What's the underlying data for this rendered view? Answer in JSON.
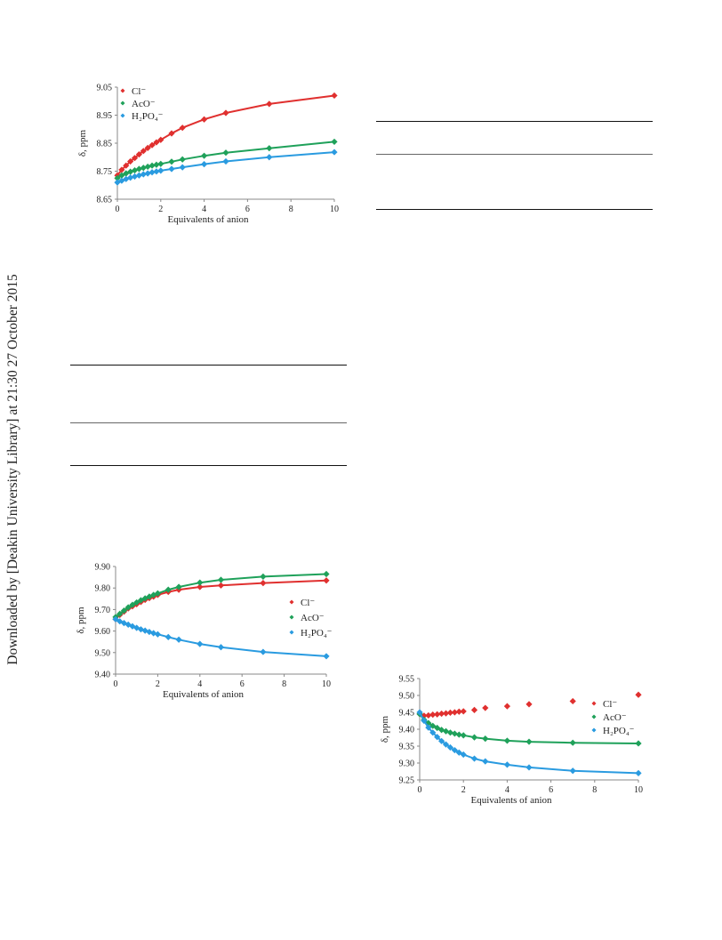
{
  "sidebar_text": "Downloaded by [Deakin University Library] at 21:30 27 October 2015",
  "chart_data": [
    {
      "type": "scatter",
      "xlabel": "Equivalents of anion",
      "ylabel": "δ, ppm",
      "xlim": [
        0,
        10
      ],
      "ylim": [
        8.65,
        9.05
      ],
      "xticks": [
        "0",
        "2",
        "4",
        "6",
        "8",
        "10"
      ],
      "yticks": [
        "8.65",
        "8.75",
        "8.85",
        "8.95",
        "9.05"
      ],
      "legend_position": "top-left",
      "series": [
        {
          "name": "Cl⁻",
          "color": "#e0302f",
          "x": [
            0,
            0.2,
            0.4,
            0.6,
            0.8,
            1,
            1.2,
            1.4,
            1.6,
            1.8,
            2,
            2.5,
            3,
            4,
            5,
            7,
            10
          ],
          "values": [
            8.735,
            8.755,
            8.77,
            8.785,
            8.797,
            8.81,
            8.822,
            8.833,
            8.843,
            8.853,
            8.862,
            8.885,
            8.905,
            8.935,
            8.958,
            8.99,
            9.02
          ]
        },
        {
          "name": "AcO⁻",
          "color": "#1fa15a",
          "x": [
            0,
            0.2,
            0.4,
            0.6,
            0.8,
            1,
            1.2,
            1.4,
            1.6,
            1.8,
            2,
            2.5,
            3,
            4,
            5,
            7,
            10
          ],
          "values": [
            8.725,
            8.735,
            8.742,
            8.748,
            8.753,
            8.758,
            8.762,
            8.766,
            8.77,
            8.773,
            8.776,
            8.784,
            8.792,
            8.805,
            8.816,
            8.832,
            8.855
          ]
        },
        {
          "name": "H₂PO₄⁻",
          "color": "#2a9be0",
          "x": [
            0,
            0.2,
            0.4,
            0.6,
            0.8,
            1,
            1.2,
            1.4,
            1.6,
            1.8,
            2,
            2.5,
            3,
            4,
            5,
            7,
            10
          ],
          "values": [
            8.71,
            8.716,
            8.722,
            8.727,
            8.731,
            8.735,
            8.739,
            8.742,
            8.746,
            8.749,
            8.752,
            8.758,
            8.764,
            8.775,
            8.785,
            8.8,
            8.818
          ]
        }
      ]
    },
    {
      "type": "scatter",
      "xlabel": "Equivalents of anion",
      "ylabel": "δ, ppm",
      "xlim": [
        0,
        10
      ],
      "ylim": [
        9.4,
        9.9
      ],
      "xticks": [
        "0",
        "2",
        "4",
        "6",
        "8",
        "10"
      ],
      "yticks": [
        "9.40",
        "9.50",
        "9.60",
        "9.70",
        "9.80",
        "9.90"
      ],
      "legend_position": "right",
      "series": [
        {
          "name": "Cl⁻",
          "color": "#e0302f",
          "x": [
            0,
            0.2,
            0.4,
            0.6,
            0.8,
            1,
            1.2,
            1.4,
            1.6,
            1.8,
            2,
            2.5,
            3,
            4,
            5,
            7,
            10
          ],
          "values": [
            9.655,
            9.675,
            9.69,
            9.705,
            9.715,
            9.725,
            9.735,
            9.745,
            9.753,
            9.76,
            9.768,
            9.782,
            9.792,
            9.805,
            9.812,
            9.823,
            9.835
          ]
        },
        {
          "name": "AcO⁻",
          "color": "#1fa15a",
          "x": [
            0,
            0.2,
            0.4,
            0.6,
            0.8,
            1,
            1.2,
            1.4,
            1.6,
            1.8,
            2,
            2.5,
            3,
            4,
            5,
            7,
            10
          ],
          "values": [
            9.665,
            9.68,
            9.695,
            9.71,
            9.722,
            9.733,
            9.743,
            9.752,
            9.76,
            9.768,
            9.775,
            9.792,
            9.805,
            9.825,
            9.838,
            9.853,
            9.865
          ]
        },
        {
          "name": "H₂PO₄⁻",
          "color": "#2a9be0",
          "x": [
            0,
            0.2,
            0.4,
            0.6,
            0.8,
            1,
            1.2,
            1.4,
            1.6,
            1.8,
            2,
            2.5,
            3,
            4,
            5,
            7,
            10
          ],
          "values": [
            9.655,
            9.645,
            9.637,
            9.63,
            9.622,
            9.615,
            9.608,
            9.602,
            9.596,
            9.59,
            9.585,
            9.572,
            9.56,
            9.54,
            9.525,
            9.503,
            9.483
          ]
        }
      ]
    },
    {
      "type": "scatter",
      "xlabel": "Equivalents of anion",
      "ylabel": "δ, ppm",
      "xlim": [
        0,
        10
      ],
      "ylim": [
        9.25,
        9.55
      ],
      "xticks": [
        "0",
        "2",
        "4",
        "6",
        "8",
        "10"
      ],
      "yticks": [
        "9.25",
        "9.30",
        "9.35",
        "9.40",
        "9.45",
        "9.50",
        "9.55"
      ],
      "legend_position": "top-right",
      "series": [
        {
          "name": "Cl⁻",
          "color": "#e0302f",
          "x": [
            0,
            0.2,
            0.4,
            0.6,
            0.8,
            1,
            1.2,
            1.4,
            1.6,
            1.8,
            2,
            2.5,
            3,
            4,
            5,
            7,
            10
          ],
          "values": [
            9.445,
            9.44,
            9.441,
            9.443,
            9.444,
            9.446,
            9.447,
            9.449,
            9.45,
            9.452,
            9.453,
            9.457,
            9.463,
            9.468,
            9.474,
            9.483,
            9.502
          ]
        },
        {
          "name": "AcO⁻",
          "color": "#1fa15a",
          "x": [
            0,
            0.2,
            0.4,
            0.6,
            0.8,
            1,
            1.2,
            1.4,
            1.6,
            1.8,
            2,
            2.5,
            3,
            4,
            5,
            7,
            10
          ],
          "values": [
            9.445,
            9.428,
            9.418,
            9.41,
            9.404,
            9.398,
            9.394,
            9.39,
            9.387,
            9.384,
            9.382,
            9.376,
            9.372,
            9.366,
            9.363,
            9.36,
            9.358
          ]
        },
        {
          "name": "H₂PO₄⁻",
          "color": "#2a9be0",
          "x": [
            0,
            0.2,
            0.4,
            0.6,
            0.8,
            1,
            1.2,
            1.4,
            1.6,
            1.8,
            2,
            2.5,
            3,
            4,
            5,
            7,
            10
          ],
          "values": [
            9.45,
            9.425,
            9.405,
            9.39,
            9.377,
            9.365,
            9.355,
            9.346,
            9.338,
            9.331,
            9.325,
            9.313,
            9.305,
            9.295,
            9.287,
            9.277,
            9.27
          ]
        }
      ]
    }
  ]
}
